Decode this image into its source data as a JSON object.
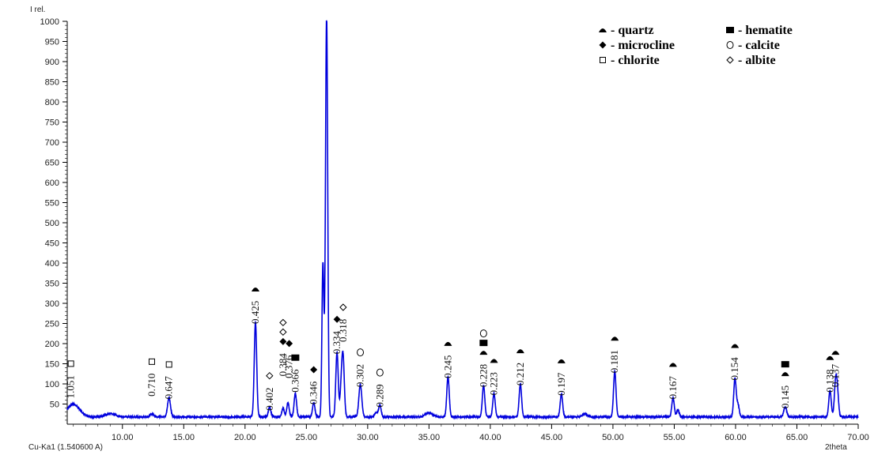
{
  "chart_data": {
    "type": "line",
    "ylabel": "I rel.",
    "xlabel": "2theta",
    "radiation_label": "Cu-Ka1 (1.540600 A)",
    "xlim": [
      5.5,
      70
    ],
    "ylim": [
      0,
      1000
    ],
    "x_ticks": [
      "10.00",
      "15.00",
      "20.00",
      "25.00",
      "30.00",
      "35.00",
      "40.00",
      "45.00",
      "50.00",
      "55.00",
      "60.00",
      "65.00",
      "70.00"
    ],
    "y_ticks": [
      "1000",
      "950",
      "900",
      "850",
      "800",
      "750",
      "700",
      "650",
      "600",
      "550",
      "500",
      "450",
      "400",
      "350",
      "300",
      "250",
      "200",
      "150",
      "100",
      "50"
    ],
    "line_color": "#0000dd",
    "baseline": 18,
    "peaks": [
      {
        "x": 6.0,
        "h": 32,
        "w": 0.5
      },
      {
        "x": 9.0,
        "h": 8,
        "w": 0.4
      },
      {
        "x": 12.4,
        "h": 8,
        "w": 0.15
      },
      {
        "x": 13.8,
        "h": 48,
        "w": 0.12
      },
      {
        "x": 20.85,
        "h": 235,
        "w": 0.1
      },
      {
        "x": 22.0,
        "h": 25,
        "w": 0.1
      },
      {
        "x": 23.1,
        "h": 22,
        "w": 0.1
      },
      {
        "x": 23.5,
        "h": 35,
        "w": 0.1
      },
      {
        "x": 24.1,
        "h": 58,
        "w": 0.1
      },
      {
        "x": 25.6,
        "h": 35,
        "w": 0.1
      },
      {
        "x": 26.35,
        "h": 380,
        "w": 0.08
      },
      {
        "x": 26.65,
        "h": 1000,
        "w": 0.09
      },
      {
        "x": 27.5,
        "h": 160,
        "w": 0.1
      },
      {
        "x": 27.85,
        "h": 70,
        "w": 0.1
      },
      {
        "x": 28.0,
        "h": 135,
        "w": 0.1
      },
      {
        "x": 29.4,
        "h": 80,
        "w": 0.12
      },
      {
        "x": 30.7,
        "h": 10,
        "w": 0.15
      },
      {
        "x": 31.0,
        "h": 28,
        "w": 0.1
      },
      {
        "x": 35.0,
        "h": 10,
        "w": 0.3
      },
      {
        "x": 36.55,
        "h": 100,
        "w": 0.1
      },
      {
        "x": 39.45,
        "h": 78,
        "w": 0.1
      },
      {
        "x": 40.3,
        "h": 58,
        "w": 0.1
      },
      {
        "x": 42.45,
        "h": 82,
        "w": 0.1
      },
      {
        "x": 45.8,
        "h": 57,
        "w": 0.1
      },
      {
        "x": 47.7,
        "h": 8,
        "w": 0.2
      },
      {
        "x": 50.15,
        "h": 113,
        "w": 0.1
      },
      {
        "x": 54.9,
        "h": 48,
        "w": 0.1
      },
      {
        "x": 55.3,
        "h": 18,
        "w": 0.1
      },
      {
        "x": 59.95,
        "h": 95,
        "w": 0.1
      },
      {
        "x": 60.2,
        "h": 30,
        "w": 0.1
      },
      {
        "x": 64.05,
        "h": 25,
        "w": 0.12
      },
      {
        "x": 67.7,
        "h": 65,
        "w": 0.1
      },
      {
        "x": 68.15,
        "h": 78,
        "w": 0.1
      },
      {
        "x": 68.3,
        "h": 60,
        "w": 0.1
      }
    ],
    "annotations": [
      {
        "label": "1.051",
        "x": 5.8,
        "y": 60,
        "markers": [
          "square-open"
        ]
      },
      {
        "label": "0.710",
        "x": 12.4,
        "y": 65,
        "markers": [
          "square-open"
        ]
      },
      {
        "label": "0.647",
        "x": 13.8,
        "y": 58,
        "markers": [
          "square-open"
        ]
      },
      {
        "label": "0.425",
        "x": 20.85,
        "y": 245,
        "markers": [
          "triangle"
        ]
      },
      {
        "label": "0.402",
        "x": 22.0,
        "y": 30,
        "markers": [
          "diamond-open"
        ]
      },
      {
        "label": "0.384",
        "x": 23.1,
        "y": 115,
        "markers": [
          "diamond",
          "diamond-open",
          "diamond-open"
        ]
      },
      {
        "label": "0.376",
        "x": 23.6,
        "y": 110,
        "markers": [
          "diamond"
        ]
      },
      {
        "label": "0.366",
        "x": 24.1,
        "y": 75,
        "markers": [
          "square"
        ]
      },
      {
        "label": "0.346",
        "x": 25.6,
        "y": 45,
        "markers": [
          "diamond"
        ]
      },
      {
        "label": "0.334",
        "x": 27.5,
        "y": 170,
        "markers": [
          "diamond"
        ]
      },
      {
        "label": "0.318",
        "x": 28.0,
        "y": 200,
        "markers": [
          "diamond-open"
        ]
      },
      {
        "label": "0.302",
        "x": 29.4,
        "y": 88,
        "markers": [
          "circle-open"
        ]
      },
      {
        "label": "0.289",
        "x": 31.0,
        "y": 38,
        "markers": [
          "circle-open"
        ]
      },
      {
        "label": "0.245",
        "x": 36.55,
        "y": 110,
        "markers": [
          "triangle"
        ]
      },
      {
        "label": "0.228",
        "x": 39.45,
        "y": 88,
        "markers": [
          "triangle",
          "square",
          "circle-open"
        ]
      },
      {
        "label": "0.223",
        "x": 40.3,
        "y": 68,
        "markers": [
          "triangle"
        ]
      },
      {
        "label": "0.212",
        "x": 42.45,
        "y": 92,
        "markers": [
          "triangle"
        ]
      },
      {
        "label": "0.197",
        "x": 45.8,
        "y": 67,
        "markers": [
          "triangle"
        ]
      },
      {
        "label": "0.181",
        "x": 50.15,
        "y": 123,
        "markers": [
          "triangle"
        ]
      },
      {
        "label": "0.167",
        "x": 54.9,
        "y": 58,
        "markers": [
          "triangle"
        ]
      },
      {
        "label": "0.154",
        "x": 59.95,
        "y": 105,
        "markers": [
          "triangle"
        ]
      },
      {
        "label": "0.145",
        "x": 64.05,
        "y": 35,
        "markers": [
          "triangle",
          "square"
        ]
      },
      {
        "label": "0.138",
        "x": 67.7,
        "y": 75,
        "markers": [
          "triangle"
        ]
      },
      {
        "label": "0.137",
        "x": 68.15,
        "y": 88,
        "markers": [
          "triangle"
        ]
      }
    ],
    "legend": {
      "placement": "top-right",
      "items": [
        {
          "marker": "triangle",
          "label": "- quartz"
        },
        {
          "marker": "square",
          "label": "- hematite"
        },
        {
          "marker": "diamond",
          "label": "- microcline"
        },
        {
          "marker": "circle-open",
          "label": "- calcite"
        },
        {
          "marker": "square-open",
          "label": "- chlorite"
        },
        {
          "marker": "diamond-open",
          "label": "- albite"
        }
      ]
    }
  }
}
